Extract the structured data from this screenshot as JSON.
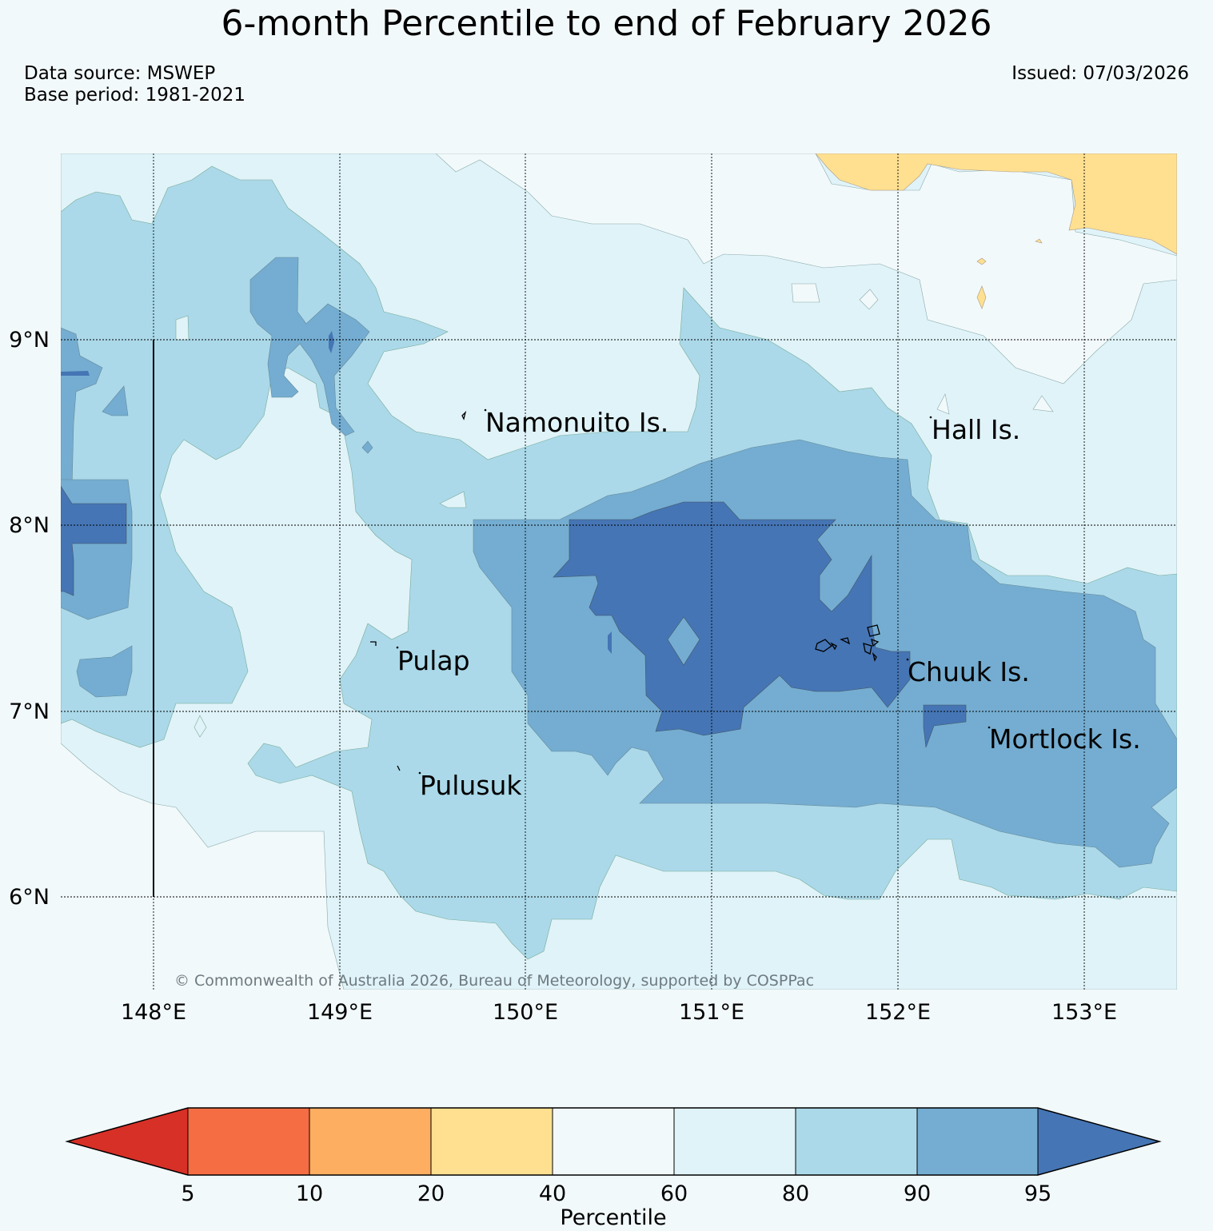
{
  "title": "6-month Percentile to end of February 2026",
  "source": {
    "data_source": "Data source: MSWEP",
    "base_period": "Base period: 1981-2021"
  },
  "issued": "Issued: 07/03/2026",
  "map": {
    "copyright": "© Commonwealth of Australia 2026, Bureau of Meteorology, supported by COSPPac",
    "lon_labels": [
      "148°E",
      "149°E",
      "150°E",
      "151°E",
      "152°E",
      "153°E"
    ],
    "lat_labels": [
      "9°N",
      "8°N",
      "7°N",
      "6°N"
    ],
    "places": [
      "Namonuito Is.",
      "Hall Is.",
      "Pulap",
      "Chuuk Is.",
      "Mortlock Is.",
      "Pulusuk"
    ]
  },
  "colorbar": {
    "label": "Percentile",
    "ticks": [
      "5",
      "10",
      "20",
      "40",
      "60",
      "80",
      "90",
      "95"
    ],
    "colors": [
      "#d73027",
      "#f46d43",
      "#fdae61",
      "#fee090",
      "#f2f9fb",
      "#e0f3f8",
      "#abd9e9",
      "#74add1",
      "#4575b4"
    ]
  }
}
